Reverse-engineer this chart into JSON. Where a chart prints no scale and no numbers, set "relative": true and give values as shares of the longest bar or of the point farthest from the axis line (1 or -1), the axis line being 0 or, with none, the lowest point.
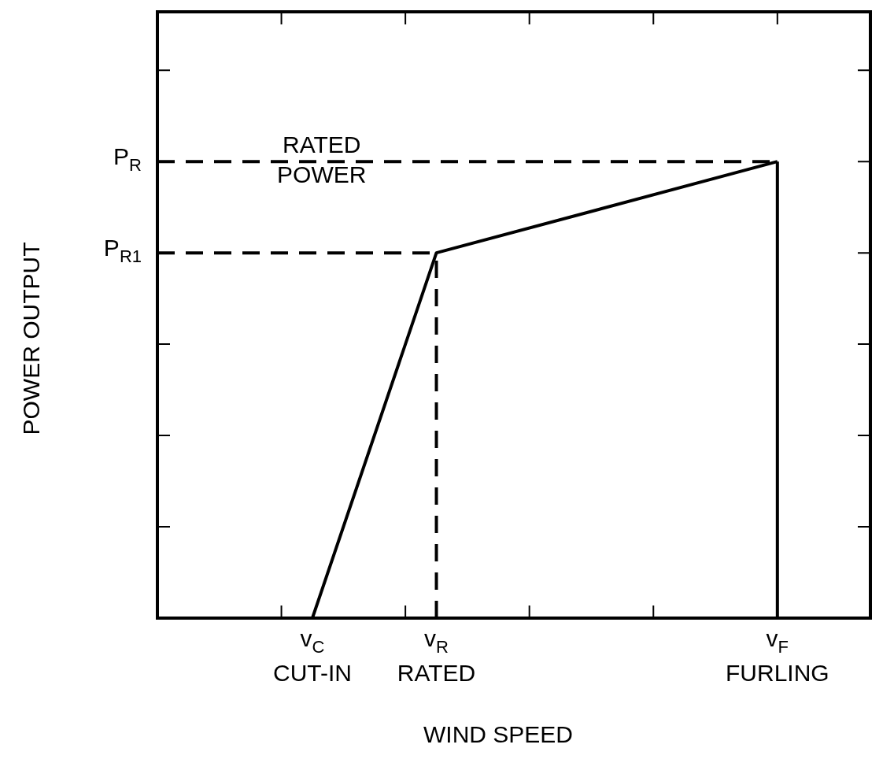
{
  "chart_data": {
    "type": "line",
    "relative": true,
    "xlabel": "WIND SPEED",
    "ylabel": "POWER OUTPUT",
    "marker": "none",
    "categories": [
      null,
      null,
      null,
      null,
      null,
      "v$_{C}$\nCUT-IN",
      null,
      null,
      null,
      "v$_{R}$\nRATED",
      null,
      null,
      null,
      null,
      null,
      null,
      null,
      null,
      null,
      null,
      "v$_{F}$\nFURLING",
      null,
      null,
      null
    ],
    "series": [
      {
        "color": "#000000",
        "line_style": "solid",
        "values": [
          null,
          null,
          null,
          null,
          null,
          0,
          null,
          null,
          null,
          0.8,
          null,
          null,
          null,
          null,
          null,
          null,
          null,
          null,
          null,
          null,
          1,
          null,
          null,
          null
        ]
      }
    ],
    "ref_lines": [
      {
        "axis": "y",
        "value": 1,
        "label": "P$_{R}$",
        "color": "#000000",
        "line_style": "dashed"
      },
      {
        "axis": "y",
        "value": 0.8,
        "label": "P$_{R1}$",
        "color": "#000000",
        "line_style": "dashed"
      },
      {
        "axis": "x",
        "value": "v$_{R}$\nRATED",
        "color": "#000000",
        "line_style": "dashed"
      },
      {
        "axis": "x",
        "value": "v$_{F}$\nFURLING",
        "color": "#000000",
        "line_style": "solid"
      }
    ],
    "annotations": [
      "RATED POWER"
    ]
  }
}
